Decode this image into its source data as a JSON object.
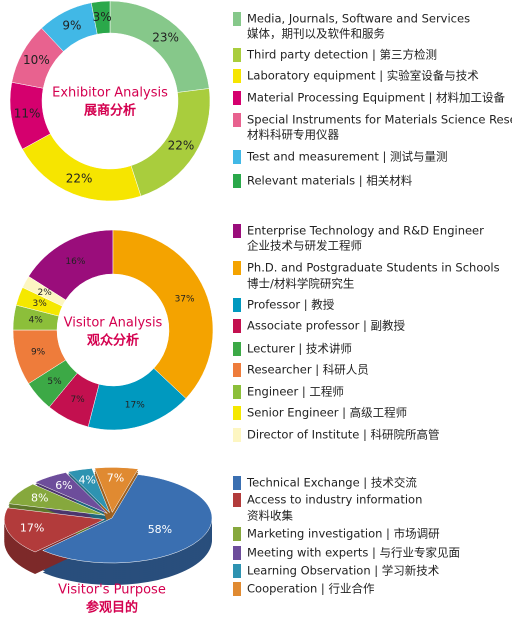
{
  "chart_data": [
    {
      "type": "donut",
      "title": "Exhibitor Analysis",
      "subtitle": "展商分析",
      "categories": [
        [
          "Media, Journals, Software and Services",
          "媒体，期刊以及软件和服务"
        ],
        [
          "Third party detection | 第三方检测"
        ],
        [
          "Laboratory equipment | 实验室设备与技术"
        ],
        [
          "Material Processing Equipment | 材料加工设备"
        ],
        [
          "Special Instruments for Materials Science Research",
          "材料科研专用仪器"
        ],
        [
          "Test and measurement | 测试与量测"
        ],
        [
          "Relevant materials | 相关材料"
        ]
      ],
      "values": [
        23,
        22,
        22,
        11,
        10,
        9,
        3
      ],
      "value_labels": [
        "23%",
        "22%",
        "22%",
        "11%",
        "10%",
        "9%",
        "3%"
      ],
      "colors": [
        "#86c88a",
        "#a9cd3d",
        "#f6e500",
        "#d5006e",
        "#e8628f",
        "#41b8e6",
        "#2aa84a"
      ]
    },
    {
      "type": "donut",
      "title": "Visitor Analysis",
      "subtitle": "观众分析",
      "categories": [
        [
          "Enterprise Technology and R&D Engineer",
          "企业技术与研发工程师"
        ],
        [
          "Ph.D. and Postgraduate Students in Schools",
          "博士/材料学院研究生"
        ],
        [
          "Professor | 教授"
        ],
        [
          "Associate professor | 副教授"
        ],
        [
          "Lecturer | 技术讲师"
        ],
        [
          "Researcher | 科研人员"
        ],
        [
          "Engineer | 工程师"
        ],
        [
          "Senior Engineer | 高级工程师"
        ],
        [
          "Director of Institute | 科研院所高管"
        ]
      ],
      "values": [
        16,
        37,
        17,
        7,
        5,
        9,
        4,
        3,
        2
      ],
      "value_labels": [
        "16%",
        "37%",
        "17%",
        "7%",
        "5%",
        "9%",
        "4%",
        "3%",
        "2%"
      ],
      "colors": [
        "#9a0d7b",
        "#f4a300",
        "#0099bf",
        "#c3104f",
        "#3ca946",
        "#ee7c3b",
        "#8cbf3a",
        "#f5e800",
        "#fdf6c2"
      ]
    },
    {
      "type": "pie3d",
      "title": "Visitor's Purpose",
      "subtitle": "参观目的",
      "categories": [
        [
          "Technical Exchange | 技术交流"
        ],
        [
          "Access to industry information",
          "资料收集"
        ],
        [
          "Marketing investigation | 市场调研"
        ],
        [
          "Meeting with experts | 与行业专家见面"
        ],
        [
          "Learning Observation | 学习新技术"
        ],
        [
          "Cooperation | 行业合作"
        ]
      ],
      "values": [
        58,
        17,
        8,
        6,
        4,
        7
      ],
      "value_labels": [
        "58%",
        "17%",
        "8%",
        "6%",
        "4%",
        "7%"
      ],
      "colors": [
        "#3a6fb1",
        "#b23b3b",
        "#86a83d",
        "#6d4d9b",
        "#2e93b1",
        "#e08a31"
      ]
    }
  ]
}
